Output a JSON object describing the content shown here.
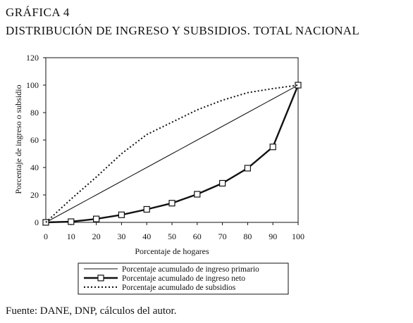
{
  "figure": {
    "label": "GRÁFICA 4",
    "title": "DISTRIBUCIÓN DE INGRESO Y SUBSIDIOS. TOTAL NACIONAL",
    "source": "Fuente: DANE, DNP, cálculos del autor."
  },
  "chart_data": {
    "type": "line",
    "xlabel": "Porcentaje de hogares",
    "ylabel": "Porcentaje de ingreso  o subsidio",
    "xlim": [
      0,
      100
    ],
    "ylim": [
      0,
      120
    ],
    "x_ticks": [
      0,
      10,
      20,
      30,
      40,
      50,
      60,
      70,
      80,
      90,
      100
    ],
    "y_ticks": [
      0,
      20,
      40,
      60,
      80,
      100,
      120
    ],
    "grid": false,
    "legend_position": "bottom",
    "x": [
      0,
      10,
      20,
      30,
      40,
      50,
      60,
      70,
      80,
      90,
      100
    ],
    "series": [
      {
        "name": "Porcentaje acumulado de ingreso primario",
        "style": "solid",
        "marker": "none",
        "values": [
          0,
          10,
          20,
          30,
          40,
          50,
          60,
          70,
          80,
          90,
          100
        ]
      },
      {
        "name": "Porcentaje acumulado de ingreso neto",
        "style": "solid-bold",
        "marker": "square",
        "values": [
          0,
          0.5,
          2.5,
          5.5,
          9.5,
          14,
          20.5,
          28.5,
          39.5,
          55,
          100
        ]
      },
      {
        "name": "Porcentaje acumulado de subsidios",
        "style": "dotted",
        "marker": "none",
        "values": [
          0,
          17,
          33,
          50,
          64,
          73,
          82,
          89,
          94.5,
          97.5,
          100
        ]
      }
    ]
  }
}
